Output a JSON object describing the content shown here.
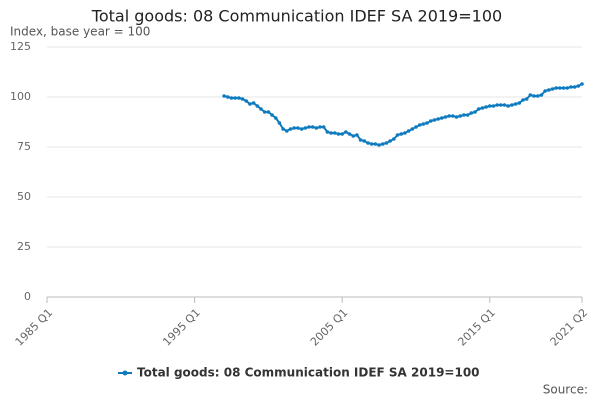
{
  "chart_data": {
    "type": "line",
    "title": "Total goods: 08 Communication IDEF SA 2019=100",
    "subtitle": "Index, base year = 100",
    "source": "Source:",
    "categories": [
      "1985 Q1",
      null,
      null,
      null,
      null,
      null,
      null,
      null,
      null,
      null,
      null,
      null,
      null,
      null,
      null,
      null,
      null,
      null,
      null,
      null,
      null,
      null,
      null,
      null,
      null,
      null,
      null,
      null,
      null,
      null,
      null,
      null,
      null,
      null,
      null,
      null,
      null,
      null,
      null,
      null,
      "1995 Q1",
      null,
      null,
      null,
      null,
      null,
      null,
      null,
      null,
      null,
      null,
      null,
      null,
      null,
      null,
      null,
      null,
      null,
      null,
      null,
      null,
      null,
      null,
      null,
      null,
      null,
      null,
      null,
      null,
      null,
      null,
      null,
      null,
      null,
      null,
      null,
      null,
      null,
      null,
      null,
      "2005 Q1",
      null,
      null,
      null,
      null,
      null,
      null,
      null,
      null,
      null,
      null,
      null,
      null,
      null,
      null,
      null,
      null,
      null,
      null,
      null,
      null,
      null,
      null,
      null,
      null,
      null,
      null,
      null,
      null,
      null,
      null,
      null,
      null,
      null,
      null,
      null,
      null,
      null,
      null,
      null,
      "2015 Q1",
      null,
      null,
      null,
      null,
      null,
      null,
      null,
      null,
      null,
      null,
      null,
      null,
      null,
      null,
      null,
      null,
      null,
      null,
      null,
      null,
      null,
      null,
      null,
      null,
      "2021 Q2"
    ],
    "series": [
      {
        "name": "Total goods: 08 Communication IDEF SA 2019=100",
        "color": "#0e7bbf",
        "values": [
          null,
          null,
          null,
          null,
          null,
          null,
          null,
          null,
          null,
          null,
          null,
          null,
          null,
          null,
          null,
          null,
          null,
          null,
          null,
          null,
          null,
          null,
          null,
          null,
          null,
          null,
          null,
          null,
          null,
          null,
          null,
          null,
          null,
          null,
          null,
          null,
          null,
          null,
          null,
          null,
          null,
          null,
          null,
          null,
          null,
          null,
          null,
          null,
          100.5,
          100,
          99.5,
          99.5,
          99.5,
          99,
          98,
          96.5,
          97,
          95.5,
          94,
          92.5,
          92.5,
          91,
          89.5,
          87,
          84,
          83,
          84,
          84.5,
          84.5,
          84,
          84.5,
          85,
          85,
          84.5,
          85,
          85,
          82.5,
          82,
          82,
          81.5,
          81.5,
          82.5,
          81.5,
          80.5,
          81,
          78.5,
          78,
          77,
          76.5,
          76.5,
          76,
          76.5,
          77,
          78,
          79,
          81,
          81.5,
          82,
          83,
          84,
          85,
          86,
          86.5,
          87,
          88,
          88.5,
          89,
          89.5,
          90,
          90.5,
          90.5,
          90,
          90.5,
          91,
          91,
          92,
          92.5,
          94,
          94.5,
          95,
          95.5,
          95.5,
          96,
          96,
          96,
          95.5,
          96,
          96.5,
          97,
          98.5,
          99,
          101,
          100.5,
          100.5,
          101,
          103,
          103.5,
          104,
          104.5,
          104.5,
          104.5,
          104.5,
          105,
          105,
          105.5,
          106.5
        ]
      }
    ],
    "ylim": [
      0,
      125
    ],
    "yticks": [
      0,
      25,
      50,
      75,
      100,
      125
    ],
    "grid": true
  }
}
